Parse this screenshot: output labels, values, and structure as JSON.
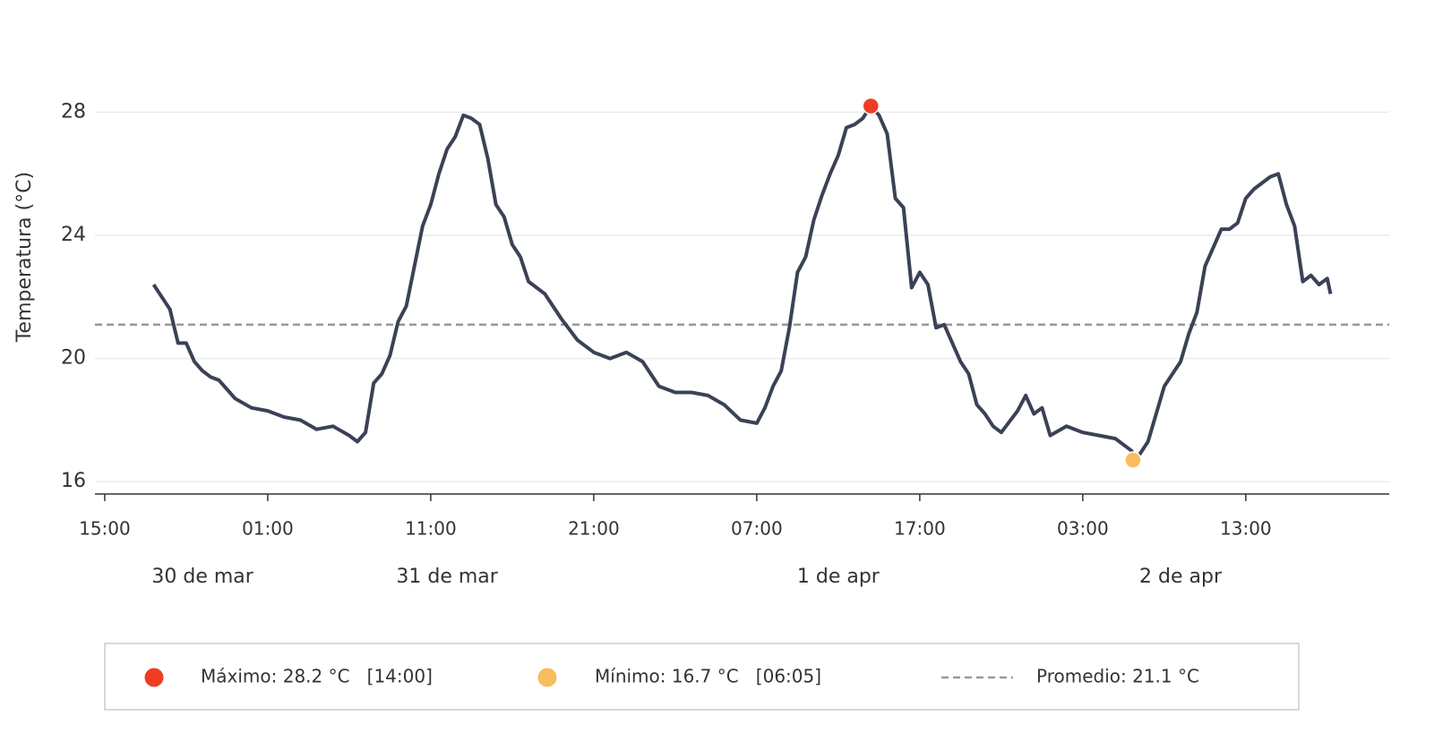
{
  "chart_data": {
    "type": "line",
    "y_label": "Temperatura (°C)",
    "color": "#3b4256",
    "x": [
      3,
      3.5,
      4,
      4.5,
      5,
      5.5,
      6,
      6.5,
      7,
      7.5,
      8,
      9,
      10,
      11,
      12,
      13,
      14,
      15,
      15.5,
      16,
      16.5,
      17,
      17.5,
      18,
      18.5,
      19,
      19.5,
      20,
      20.5,
      21,
      21.5,
      22,
      22.5,
      23,
      23.5,
      24,
      24.5,
      25,
      25.5,
      26,
      27,
      28,
      29,
      30,
      31,
      32,
      33,
      34,
      35,
      36,
      37,
      38,
      39,
      40,
      40.5,
      41,
      41.5,
      42,
      42.5,
      43,
      43.5,
      44,
      44.5,
      45,
      45.5,
      46,
      46.5,
      47,
      47.5,
      48,
      48.5,
      49,
      49.5,
      50,
      50.5,
      51,
      51.5,
      52,
      52.5,
      53,
      53.5,
      54,
      54.5,
      55,
      56,
      56.5,
      57,
      57.5,
      58,
      59,
      60,
      61,
      62,
      63,
      63.08,
      63.5,
      64,
      64.5,
      65,
      65.5,
      66,
      66.5,
      67,
      67.5,
      68,
      68.5,
      69,
      69.5,
      70,
      70.5,
      71,
      71.5,
      72,
      72.5,
      73,
      73.5,
      74,
      74.5,
      75,
      75.2
    ],
    "values": [
      22.4,
      22.0,
      21.6,
      20.5,
      20.5,
      19.9,
      19.6,
      19.4,
      19.3,
      19.0,
      18.7,
      18.4,
      18.3,
      18.1,
      18.0,
      17.7,
      17.8,
      17.5,
      17.3,
      17.6,
      19.2,
      19.5,
      20.1,
      21.2,
      21.7,
      23.0,
      24.3,
      25.0,
      26.0,
      26.8,
      27.2,
      27.9,
      27.8,
      27.6,
      26.5,
      25.0,
      24.6,
      23.7,
      23.3,
      22.5,
      22.1,
      21.3,
      20.6,
      20.2,
      20.0,
      20.2,
      19.9,
      19.1,
      18.9,
      18.9,
      18.8,
      18.5,
      18.0,
      17.9,
      18.4,
      19.1,
      19.6,
      21.0,
      22.8,
      23.3,
      24.5,
      25.3,
      26.0,
      26.6,
      27.5,
      27.6,
      27.8,
      28.2,
      27.9,
      27.3,
      25.2,
      24.9,
      22.3,
      22.8,
      22.4,
      21.0,
      21.1,
      20.5,
      19.9,
      19.5,
      18.5,
      18.2,
      17.8,
      17.6,
      18.3,
      18.8,
      18.2,
      18.4,
      17.5,
      17.8,
      17.6,
      17.5,
      17.4,
      17.0,
      16.7,
      16.9,
      17.3,
      18.2,
      19.1,
      19.5,
      19.9,
      20.8,
      21.5,
      23.0,
      23.6,
      24.2,
      24.2,
      24.4,
      25.2,
      25.5,
      25.7,
      25.9,
      26.0,
      25.0,
      24.3,
      22.5,
      22.7,
      22.4,
      22.6,
      22.1
    ],
    "xlim": [
      -0.6,
      78.8
    ],
    "xticks": [
      {
        "value": 0,
        "label": "15:00"
      },
      {
        "value": 10,
        "label": "01:00"
      },
      {
        "value": 20,
        "label": "11:00"
      },
      {
        "value": 30,
        "label": "21:00"
      },
      {
        "value": 40,
        "label": "07:00"
      },
      {
        "value": 50,
        "label": "17:00"
      },
      {
        "value": 60,
        "label": "03:00"
      },
      {
        "value": 70,
        "label": "13:00"
      }
    ],
    "date_labels": [
      {
        "value": 6,
        "label": "30 de mar"
      },
      {
        "value": 21,
        "label": "31 de mar"
      },
      {
        "value": 45,
        "label": "1 de apr"
      },
      {
        "value": 66,
        "label": "2 de apr"
      }
    ],
    "ylim": [
      15.6,
      29.9
    ],
    "yticks": [
      16,
      20,
      24,
      28
    ],
    "grid": true,
    "annotations": [
      {
        "x": 47,
        "value": 28.2,
        "color": "#f03c24",
        "label": "Máximo: 28.2 °C   [14:00]"
      },
      {
        "x": 63.08,
        "value": 16.7,
        "color": "#f9bc5c",
        "label": "Mínimo: 16.7 °C   [06:05]"
      }
    ],
    "mean": {
      "value": 21.1,
      "color": "#999999",
      "label": "Promedio: 21.1 °C"
    }
  }
}
